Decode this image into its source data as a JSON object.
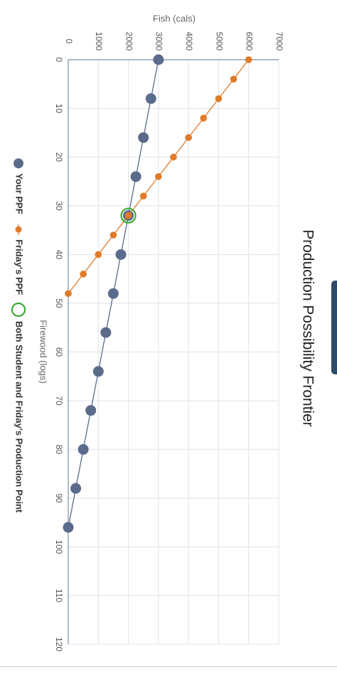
{
  "chart_data": {
    "type": "line",
    "title": "Production Possibility Frontier",
    "xlabel": "Firewood (logs)",
    "ylabel": "Fish (cals)",
    "xlim": [
      0,
      120
    ],
    "ylim": [
      0,
      7000
    ],
    "xticks": [
      "0",
      "10",
      "20",
      "30",
      "40",
      "50",
      "60",
      "70",
      "80",
      "90",
      "100",
      "110",
      "120"
    ],
    "yticks": [
      "0",
      "1000",
      "2000",
      "3000",
      "4000",
      "5000",
      "6000",
      "7000"
    ],
    "grid": true,
    "orientation": "rotated 90 degrees clockwise",
    "legend_position": "bottom",
    "series": [
      {
        "name": "Your PPF",
        "color": "#5b6b8c",
        "marker": "large-circle",
        "points": [
          [
            0,
            3000
          ],
          [
            8,
            2750
          ],
          [
            16,
            2500
          ],
          [
            24,
            2250
          ],
          [
            32,
            2000
          ],
          [
            40,
            1750
          ],
          [
            48,
            1500
          ],
          [
            56,
            1250
          ],
          [
            64,
            1000
          ],
          [
            72,
            750
          ],
          [
            80,
            500
          ],
          [
            88,
            250
          ],
          [
            96,
            0
          ]
        ]
      },
      {
        "name": "Friday's PPF",
        "color": "#e07b2a",
        "marker": "small-circle",
        "points": [
          [
            0,
            6000
          ],
          [
            4,
            5500
          ],
          [
            8,
            5000
          ],
          [
            12,
            4500
          ],
          [
            16,
            4000
          ],
          [
            20,
            3500
          ],
          [
            24,
            3000
          ],
          [
            28,
            2500
          ],
          [
            32,
            2000
          ],
          [
            36,
            1500
          ],
          [
            40,
            1000
          ],
          [
            44,
            500
          ],
          [
            48,
            0
          ]
        ]
      }
    ],
    "highlight_point": {
      "name": "Both Student and Friday's Production Point",
      "x": 32,
      "y": 2000,
      "color": "#3aaa35"
    }
  }
}
